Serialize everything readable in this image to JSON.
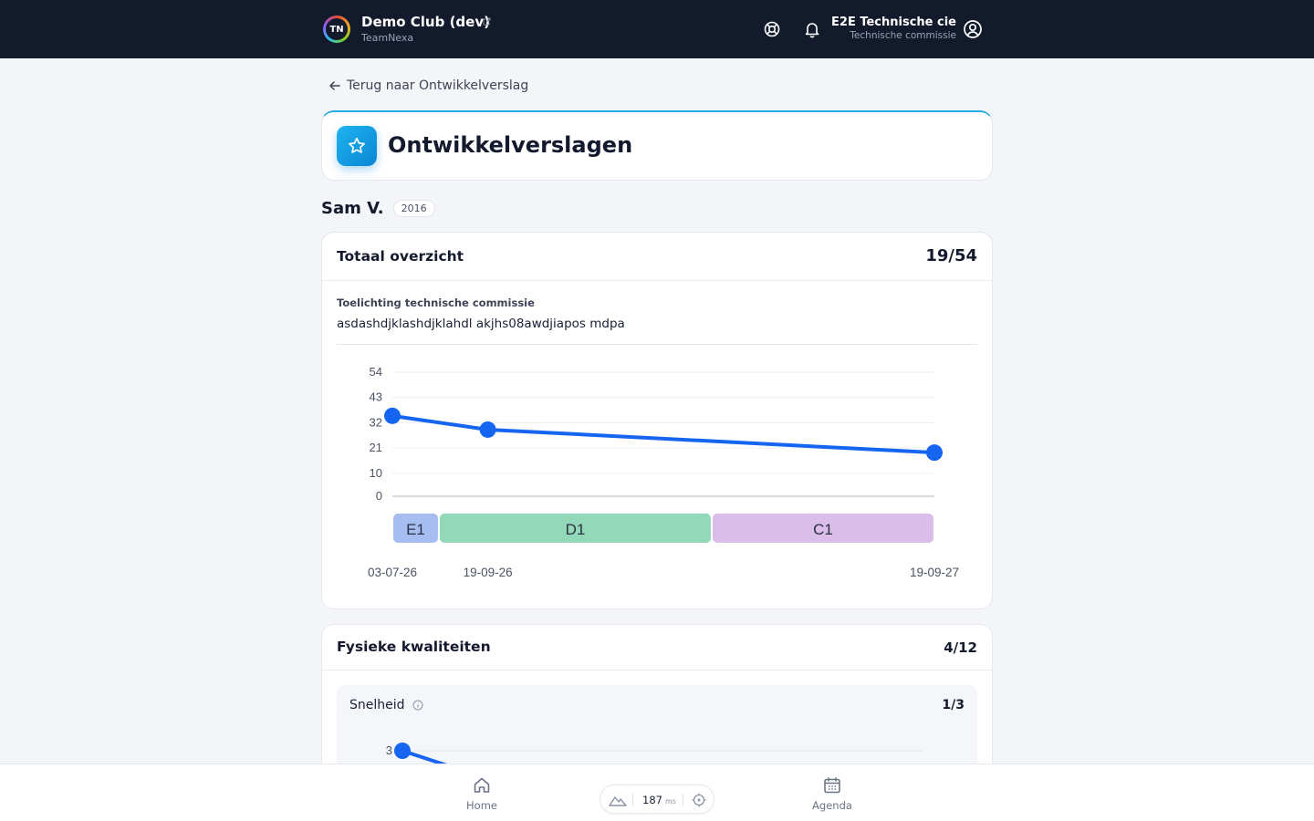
{
  "topbar": {
    "logo_text": "TN",
    "club_name": "Demo Club (dev)",
    "org_name": "TeamNexa",
    "user_name": "E2E Technische cie",
    "user_role": "Technische commissie",
    "icons": [
      "external-link-icon",
      "help-icon",
      "bell-icon",
      "user-circle-icon"
    ]
  },
  "back_link": "Terug naar Ontwikkelverslag",
  "page_title": "Ontwikkelverslagen",
  "player": {
    "name": "Sam V.",
    "year": "2016"
  },
  "overview": {
    "title": "Totaal overzicht",
    "score": "19/54",
    "note_label": "Toelichting technische commissie",
    "note_text": "asdashdjklashdjklahdl akjhs08awdjiapos mdpa"
  },
  "physical": {
    "title": "Fysieke kwaliteiten",
    "score": "4/12",
    "sub": {
      "title": "Snelheid",
      "score": "1/3"
    }
  },
  "bottom_nav": {
    "home": "Home",
    "agenda": "Agenda",
    "perf_value": "187",
    "perf_unit": "ms"
  },
  "colors": {
    "accent": "#1565f0",
    "header_bg": "#121a2b",
    "E1": "#a6bdf2",
    "D1": "#93d9b9",
    "C1": "#dbbde9"
  },
  "chart_data": [
    {
      "type": "line",
      "title": "",
      "x": [
        "03-07-26",
        "19-09-26",
        "19-09-27"
      ],
      "x_dates": [
        "2026-07-03",
        "2026-09-19",
        "2027-09-19"
      ],
      "values": [
        35,
        29,
        19
      ],
      "y_ticks": [
        0,
        10,
        21,
        32,
        43,
        54
      ],
      "ylim": [
        0,
        54
      ],
      "grid": true,
      "bands": [
        {
          "label": "E1",
          "from": "2026-07-03",
          "to": "2026-08-10",
          "color": "#a6bdf2"
        },
        {
          "label": "D1",
          "from": "2026-08-10",
          "to": "2027-03-21",
          "color": "#93d9b9"
        },
        {
          "label": "C1",
          "from": "2027-03-21",
          "to": "2027-09-19",
          "color": "#dbbde9"
        }
      ]
    },
    {
      "type": "line",
      "title": "Snelheid",
      "y_ticks": [
        3
      ],
      "ylim": [
        0,
        3
      ],
      "values": [
        3,
        1
      ],
      "grid": true
    }
  ]
}
